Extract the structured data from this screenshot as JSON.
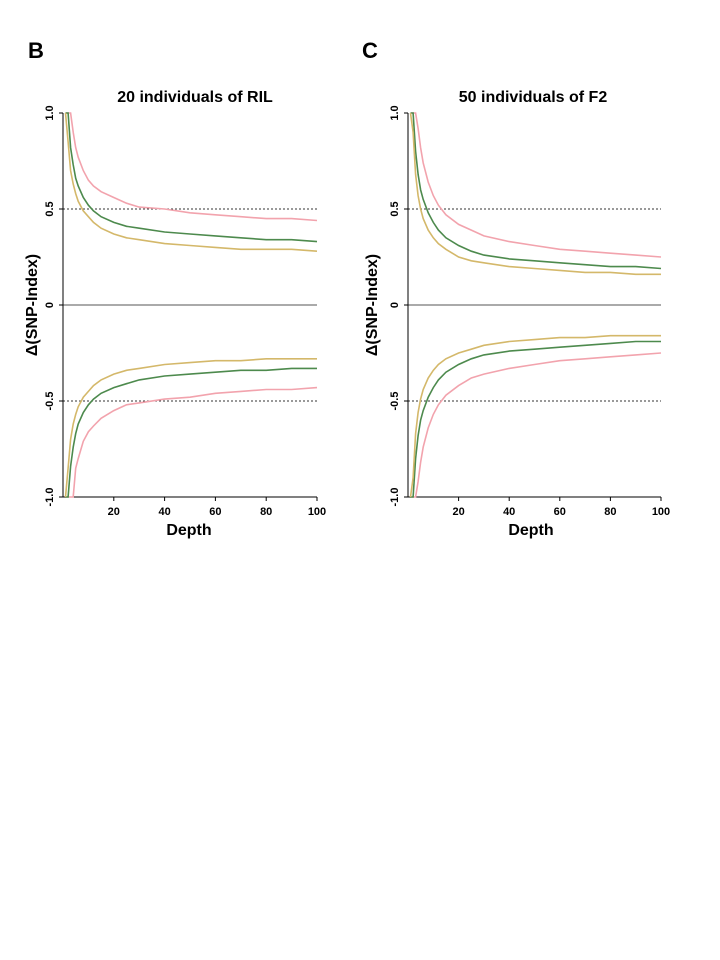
{
  "chart_data": [
    {
      "type": "line",
      "panel_label": "B",
      "title": "20 individuals of RIL",
      "xlabel": "Depth",
      "ylabel": "Δ(SNP-Index)",
      "xlim": [
        0,
        100
      ],
      "ylim": [
        -1.0,
        1.0
      ],
      "x_ticks": [
        20,
        40,
        60,
        80,
        100
      ],
      "y_ticks": [
        -1.0,
        -0.5,
        0,
        0.5,
        1.0
      ],
      "y_tick_labels": [
        "-1.0",
        "-0.5",
        "0",
        "0.5",
        "1.0"
      ],
      "threshold_lines": [
        0.5,
        -0.5
      ],
      "grid": false,
      "x": [
        1,
        2,
        3,
        4,
        5,
        6,
        8,
        10,
        12,
        15,
        20,
        25,
        30,
        40,
        50,
        60,
        70,
        80,
        90,
        100
      ],
      "series": [
        {
          "color": "#f2a3ad",
          "upper": [
            1.0,
            1.0,
            1.0,
            0.9,
            0.82,
            0.77,
            0.7,
            0.65,
            0.62,
            0.59,
            0.56,
            0.53,
            0.51,
            0.5,
            0.48,
            0.47,
            0.46,
            0.45,
            0.45,
            0.44
          ],
          "lower": [
            -1.0,
            -1.0,
            -1.0,
            -1.0,
            -0.85,
            -0.8,
            -0.71,
            -0.66,
            -0.63,
            -0.59,
            -0.55,
            -0.52,
            -0.51,
            -0.49,
            -0.48,
            -0.46,
            -0.45,
            -0.44,
            -0.44,
            -0.43
          ]
        },
        {
          "color": "#4d8a4d",
          "upper": [
            1.0,
            1.0,
            0.82,
            0.73,
            0.66,
            0.62,
            0.56,
            0.52,
            0.49,
            0.46,
            0.43,
            0.41,
            0.4,
            0.38,
            0.37,
            0.36,
            0.35,
            0.34,
            0.34,
            0.33
          ],
          "lower": [
            -1.0,
            -1.0,
            -0.84,
            -0.74,
            -0.67,
            -0.62,
            -0.56,
            -0.52,
            -0.49,
            -0.46,
            -0.43,
            -0.41,
            -0.39,
            -0.37,
            -0.36,
            -0.35,
            -0.34,
            -0.34,
            -0.33,
            -0.33
          ]
        },
        {
          "color": "#d4b86a",
          "upper": [
            1.0,
            0.85,
            0.7,
            0.63,
            0.58,
            0.54,
            0.49,
            0.46,
            0.43,
            0.4,
            0.37,
            0.35,
            0.34,
            0.32,
            0.31,
            0.3,
            0.29,
            0.29,
            0.29,
            0.28
          ],
          "lower": [
            -1.0,
            -0.85,
            -0.7,
            -0.62,
            -0.57,
            -0.53,
            -0.48,
            -0.45,
            -0.42,
            -0.39,
            -0.36,
            -0.34,
            -0.33,
            -0.31,
            -0.3,
            -0.29,
            -0.29,
            -0.28,
            -0.28,
            -0.28
          ]
        }
      ]
    },
    {
      "type": "line",
      "panel_label": "C",
      "title": "50 individuals of F2",
      "xlabel": "Depth",
      "ylabel": "Δ(SNP-Index)",
      "xlim": [
        0,
        100
      ],
      "ylim": [
        -1.0,
        1.0
      ],
      "x_ticks": [
        20,
        40,
        60,
        80,
        100
      ],
      "y_ticks": [
        -1.0,
        -0.5,
        0,
        0.5,
        1.0
      ],
      "y_tick_labels": [
        "-1.0",
        "-0.5",
        "0",
        "0.5",
        "1.0"
      ],
      "threshold_lines": [
        0.5,
        -0.5
      ],
      "grid": false,
      "x": [
        1,
        2,
        3,
        4,
        5,
        6,
        8,
        10,
        12,
        15,
        20,
        25,
        30,
        40,
        50,
        60,
        70,
        80,
        90,
        100
      ],
      "series": [
        {
          "color": "#f2a3ad",
          "upper": [
            1.0,
            1.0,
            1.0,
            0.92,
            0.82,
            0.74,
            0.64,
            0.57,
            0.52,
            0.47,
            0.42,
            0.39,
            0.36,
            0.33,
            0.31,
            0.29,
            0.28,
            0.27,
            0.26,
            0.25
          ],
          "lower": [
            -1.0,
            -1.0,
            -1.0,
            -0.92,
            -0.82,
            -0.74,
            -0.64,
            -0.57,
            -0.52,
            -0.47,
            -0.42,
            -0.38,
            -0.36,
            -0.33,
            -0.31,
            -0.29,
            -0.28,
            -0.27,
            -0.26,
            -0.25
          ]
        },
        {
          "color": "#4d8a4d",
          "upper": [
            1.0,
            1.0,
            0.8,
            0.68,
            0.6,
            0.55,
            0.48,
            0.43,
            0.39,
            0.35,
            0.31,
            0.28,
            0.26,
            0.24,
            0.23,
            0.22,
            0.21,
            0.2,
            0.2,
            0.19
          ],
          "lower": [
            -1.0,
            -1.0,
            -0.8,
            -0.68,
            -0.6,
            -0.55,
            -0.48,
            -0.43,
            -0.39,
            -0.35,
            -0.31,
            -0.28,
            -0.26,
            -0.24,
            -0.23,
            -0.22,
            -0.21,
            -0.2,
            -0.19,
            -0.19
          ]
        },
        {
          "color": "#d4b86a",
          "upper": [
            1.0,
            0.9,
            0.68,
            0.57,
            0.5,
            0.45,
            0.39,
            0.35,
            0.32,
            0.29,
            0.25,
            0.23,
            0.22,
            0.2,
            0.19,
            0.18,
            0.17,
            0.17,
            0.16,
            0.16
          ],
          "lower": [
            -1.0,
            -0.9,
            -0.67,
            -0.56,
            -0.49,
            -0.44,
            -0.38,
            -0.34,
            -0.31,
            -0.28,
            -0.25,
            -0.23,
            -0.21,
            -0.19,
            -0.18,
            -0.17,
            -0.17,
            -0.16,
            -0.16,
            -0.16
          ]
        }
      ]
    }
  ]
}
